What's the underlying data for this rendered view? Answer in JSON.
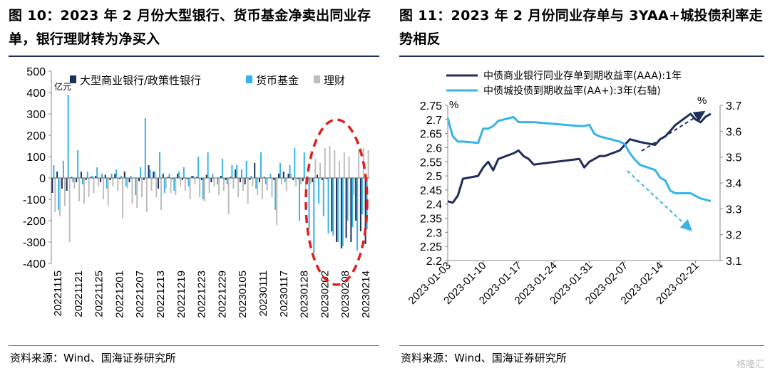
{
  "left": {
    "title": "图 10：2023 年 2 月份大型银行、货币基金净卖出同业存单，银行理财转为净买入",
    "source": "资料来源：Wind、国海证券研究所",
    "chart_data": {
      "type": "bar",
      "unit_label": "亿元",
      "ylim": [
        -400,
        500
      ],
      "yticks": [
        -400,
        -300,
        -200,
        -100,
        0,
        100,
        200,
        300,
        400,
        500
      ],
      "xtick_labels": [
        "20221115",
        "20221121",
        "20221125",
        "20221201",
        "20221207",
        "20221213",
        "20221219",
        "20221223",
        "20221229",
        "20230105",
        "20230111",
        "20230117",
        "20230128",
        "20230202",
        "20230208",
        "20230214"
      ],
      "legend": [
        "大型商业银行/政策性银行",
        "货币基金",
        "理财"
      ],
      "colors": [
        "#1f2f5c",
        "#35b4e8",
        "#bdbdbd"
      ],
      "n_dates": 66,
      "series": [
        {
          "name": "大型商业银行/政策性银行",
          "values": [
            -70,
            30,
            -50,
            -60,
            5,
            -20,
            30,
            -10,
            5,
            10,
            -20,
            15,
            -10,
            20,
            -5,
            30,
            -20,
            0,
            -15,
            -10,
            60,
            30,
            -50,
            20,
            5,
            -5,
            20,
            -10,
            -5,
            10,
            5,
            -10,
            15,
            -20,
            0,
            10,
            -10,
            5,
            40,
            -20,
            -30,
            -10,
            70,
            -20,
            5,
            0,
            -10,
            20,
            30,
            20,
            -10,
            -5,
            -15,
            -10,
            -20,
            15,
            -10,
            -5,
            -250,
            -300,
            -330,
            -280,
            -300,
            -200,
            -250,
            -310
          ]
        },
        {
          "name": "货币基金",
          "values": [
            60,
            -150,
            80,
            390,
            -20,
            130,
            -30,
            30,
            10,
            50,
            20,
            -50,
            20,
            40,
            10,
            -40,
            10,
            -80,
            50,
            280,
            40,
            30,
            120,
            -70,
            20,
            -60,
            30,
            50,
            -40,
            10,
            100,
            -100,
            120,
            20,
            -30,
            90,
            -30,
            60,
            60,
            40,
            80,
            10,
            -50,
            120,
            -30,
            20,
            -150,
            70,
            -20,
            60,
            140,
            -200,
            120,
            -240,
            -350,
            -120,
            -180,
            -260,
            -270,
            -300,
            -320,
            -200,
            -230,
            -340,
            -170,
            -240
          ]
        },
        {
          "name": "理财",
          "values": [
            -160,
            -180,
            -130,
            -300,
            -50,
            -110,
            -120,
            -90,
            -70,
            -40,
            -100,
            -130,
            -40,
            -60,
            -190,
            -50,
            -120,
            -140,
            -90,
            -160,
            -60,
            -90,
            -150,
            -50,
            -70,
            -80,
            -40,
            -60,
            -100,
            -30,
            -90,
            -110,
            -70,
            -40,
            -80,
            -60,
            -170,
            -50,
            -90,
            -60,
            -120,
            -40,
            -80,
            -100,
            -60,
            -90,
            -220,
            -30,
            -60,
            20,
            -40,
            -30,
            -60,
            -30,
            90,
            70,
            140,
            150,
            130,
            80,
            120,
            100,
            -80,
            130,
            140,
            130
          ]
        }
      ]
    }
  },
  "right": {
    "title": "图 11：2023 年 2 月份同业存单与 3YAA+城投债利率走势相反",
    "source": "资料来源：Wind、国海证券研究所",
    "watermark": "格隆汇",
    "chart_data": {
      "type": "line",
      "left_axis_unit": "%",
      "right_axis_unit": "%",
      "ylim_left": [
        2.2,
        2.75
      ],
      "yticks_left": [
        2.2,
        2.25,
        2.3,
        2.35,
        2.4,
        2.45,
        2.5,
        2.55,
        2.6,
        2.65,
        2.7,
        2.75
      ],
      "ylim_right": [
        3.1,
        3.7
      ],
      "yticks_right": [
        3.1,
        3.2,
        3.3,
        3.4,
        3.5,
        3.6,
        3.7
      ],
      "xtick_labels": [
        "2023-01-03",
        "2023-01-10",
        "2023-01-17",
        "2023-01-24",
        "2023-01-31",
        "2023-02-07",
        "2023-02-14",
        "2023-02-21"
      ],
      "x": [
        "2023-01-03",
        "2023-01-04",
        "2023-01-05",
        "2023-01-06",
        "2023-01-09",
        "2023-01-10",
        "2023-01-11",
        "2023-01-12",
        "2023-01-13",
        "2023-01-16",
        "2023-01-17",
        "2023-01-18",
        "2023-01-19",
        "2023-01-20",
        "2023-01-29",
        "2023-01-30",
        "2023-01-31",
        "2023-02-01",
        "2023-02-02",
        "2023-02-03",
        "2023-02-06",
        "2023-02-07",
        "2023-02-08",
        "2023-02-09",
        "2023-02-10",
        "2023-02-13",
        "2023-02-14",
        "2023-02-15",
        "2023-02-16",
        "2023-02-17",
        "2023-02-20",
        "2023-02-21",
        "2023-02-22",
        "2023-02-23",
        "2023-02-24"
      ],
      "series": [
        {
          "name": "中债商业银行同业存单到期收益率(AAA):1年",
          "axis": "left",
          "color": "#1f2f5c",
          "values": [
            2.41,
            2.405,
            2.43,
            2.49,
            2.5,
            2.53,
            2.55,
            2.52,
            2.56,
            2.58,
            2.59,
            2.57,
            2.56,
            2.54,
            2.56,
            2.53,
            2.55,
            2.56,
            2.57,
            2.57,
            2.59,
            2.61,
            2.63,
            2.625,
            2.62,
            2.61,
            2.63,
            2.64,
            2.66,
            2.68,
            2.72,
            2.7,
            2.69,
            2.71,
            2.72
          ]
        },
        {
          "name": "中债城投债到期收益率(AA+):3年(右轴)",
          "axis": "right",
          "color": "#35b4e8",
          "values": [
            3.65,
            3.58,
            3.56,
            3.56,
            3.555,
            3.61,
            3.61,
            3.62,
            3.64,
            3.655,
            3.635,
            3.635,
            3.635,
            3.635,
            3.62,
            3.62,
            3.625,
            3.59,
            3.58,
            3.575,
            3.56,
            3.55,
            3.515,
            3.49,
            3.47,
            3.45,
            3.42,
            3.41,
            3.37,
            3.36,
            3.36,
            3.35,
            3.34,
            3.335,
            3.33
          ]
        }
      ]
    }
  }
}
